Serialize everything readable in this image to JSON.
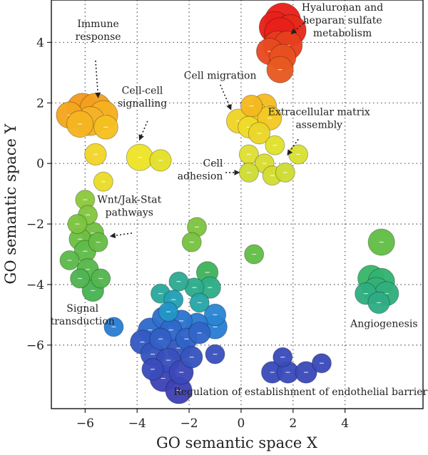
{
  "chart_data": {
    "type": "scatter",
    "xlabel": "GO semantic space X",
    "ylabel": "GO semantic space Y",
    "xlim": [
      -7.3,
      7.0
    ],
    "ylim": [
      -8.1,
      5.4
    ],
    "xticks": [
      -6,
      -4,
      -2,
      0,
      2,
      4
    ],
    "xtick_labels": [
      "−6",
      "−4",
      "−2",
      "0",
      "2",
      "4"
    ],
    "yticks": [
      -6,
      -4,
      -2,
      0,
      2,
      4
    ],
    "ytick_labels": [
      "−6",
      "−4",
      "−2",
      "0",
      "2",
      "4"
    ],
    "grid": "dotted",
    "points": [
      {
        "x": 1.6,
        "y": 4.7,
        "size": 1.2,
        "color": "#e8201a"
      },
      {
        "x": 1.3,
        "y": 4.5,
        "size": 1.0,
        "color": "#e8201a"
      },
      {
        "x": 1.9,
        "y": 4.4,
        "size": 1.0,
        "color": "#e62a1a"
      },
      {
        "x": 1.5,
        "y": 4.3,
        "size": 1.0,
        "color": "#e8201a"
      },
      {
        "x": 1.4,
        "y": 3.9,
        "size": 0.9,
        "color": "#e63a1e"
      },
      {
        "x": 1.8,
        "y": 3.9,
        "size": 0.9,
        "color": "#e6401e"
      },
      {
        "x": 1.1,
        "y": 3.7,
        "size": 0.8,
        "color": "#e84a20"
      },
      {
        "x": 1.6,
        "y": 3.5,
        "size": 0.8,
        "color": "#e8501f"
      },
      {
        "x": 1.5,
        "y": 3.1,
        "size": 0.8,
        "color": "#e65a20"
      },
      {
        "x": -6.1,
        "y": 1.8,
        "size": 1.0,
        "color": "#f39a1c"
      },
      {
        "x": -5.6,
        "y": 1.8,
        "size": 1.0,
        "color": "#f5a01c"
      },
      {
        "x": -6.6,
        "y": 1.6,
        "size": 0.8,
        "color": "#f5a51e"
      },
      {
        "x": -5.3,
        "y": 1.6,
        "size": 0.9,
        "color": "#f5b020"
      },
      {
        "x": -5.8,
        "y": 1.4,
        "size": 0.9,
        "color": "#f5b22a"
      },
      {
        "x": -6.2,
        "y": 1.3,
        "size": 0.8,
        "color": "#f5b420"
      },
      {
        "x": -5.2,
        "y": 1.2,
        "size": 0.7,
        "color": "#f5c020"
      },
      {
        "x": -5.6,
        "y": 0.3,
        "size": 0.6,
        "color": "#f1d526"
      },
      {
        "x": -5.3,
        "y": -0.6,
        "size": 0.5,
        "color": "#e8dc2a"
      },
      {
        "x": -3.9,
        "y": 0.2,
        "size": 0.8,
        "color": "#eee326"
      },
      {
        "x": -3.1,
        "y": 0.1,
        "size": 0.6,
        "color": "#e3e028"
      },
      {
        "x": 0.4,
        "y": 1.9,
        "size": 0.6,
        "color": "#f5b820"
      },
      {
        "x": 0.9,
        "y": 1.9,
        "size": 0.7,
        "color": "#f5bb22"
      },
      {
        "x": 0.6,
        "y": 1.6,
        "size": 0.7,
        "color": "#f5c622"
      },
      {
        "x": 1.1,
        "y": 1.5,
        "size": 0.7,
        "color": "#f4c924"
      },
      {
        "x": -0.1,
        "y": 1.4,
        "size": 0.7,
        "color": "#f0d326"
      },
      {
        "x": 0.3,
        "y": 1.2,
        "size": 0.6,
        "color": "#eedb28"
      },
      {
        "x": 0.7,
        "y": 1.0,
        "size": 0.6,
        "color": "#ebd528"
      },
      {
        "x": 1.3,
        "y": 0.6,
        "size": 0.5,
        "color": "#dfe22a"
      },
      {
        "x": 2.2,
        "y": 0.3,
        "size": 0.5,
        "color": "#d8e030"
      },
      {
        "x": 0.3,
        "y": 0.3,
        "size": 0.5,
        "color": "#dfe030"
      },
      {
        "x": 0.9,
        "y": 0.0,
        "size": 0.5,
        "color": "#d8dc30"
      },
      {
        "x": 1.2,
        "y": -0.4,
        "size": 0.5,
        "color": "#d3dd30"
      },
      {
        "x": 1.7,
        "y": -0.3,
        "size": 0.5,
        "color": "#cfdc32"
      },
      {
        "x": 0.3,
        "y": -0.3,
        "size": 0.5,
        "color": "#cfdc32"
      },
      {
        "x": -6.0,
        "y": -1.2,
        "size": 0.5,
        "color": "#8dc93e"
      },
      {
        "x": -5.9,
        "y": -1.7,
        "size": 0.5,
        "color": "#82c63e"
      },
      {
        "x": -6.3,
        "y": -2.0,
        "size": 0.5,
        "color": "#7cc440"
      },
      {
        "x": -5.7,
        "y": -2.3,
        "size": 0.6,
        "color": "#72c142"
      },
      {
        "x": -6.2,
        "y": -2.5,
        "size": 0.6,
        "color": "#6cbf44"
      },
      {
        "x": -5.5,
        "y": -2.6,
        "size": 0.5,
        "color": "#66bd46"
      },
      {
        "x": -6.0,
        "y": -2.9,
        "size": 0.6,
        "color": "#60bb48"
      },
      {
        "x": -6.6,
        "y": -3.2,
        "size": 0.5,
        "color": "#5cba4a"
      },
      {
        "x": -5.9,
        "y": -3.5,
        "size": 0.6,
        "color": "#57b84c"
      },
      {
        "x": -5.4,
        "y": -3.8,
        "size": 0.5,
        "color": "#52b64e"
      },
      {
        "x": -6.2,
        "y": -3.8,
        "size": 0.5,
        "color": "#4eb450"
      },
      {
        "x": -5.7,
        "y": -4.2,
        "size": 0.6,
        "color": "#48b352"
      },
      {
        "x": -1.7,
        "y": -2.1,
        "size": 0.5,
        "color": "#7dc540"
      },
      {
        "x": -1.9,
        "y": -2.6,
        "size": 0.5,
        "color": "#78c342"
      },
      {
        "x": 0.5,
        "y": -3.0,
        "size": 0.5,
        "color": "#62bd46"
      },
      {
        "x": 5.4,
        "y": -2.6,
        "size": 0.8,
        "color": "#63be46"
      },
      {
        "x": 5.0,
        "y": -3.8,
        "size": 0.8,
        "color": "#38b56a"
      },
      {
        "x": 5.4,
        "y": -3.9,
        "size": 0.8,
        "color": "#34b370"
      },
      {
        "x": 5.2,
        "y": -4.2,
        "size": 0.8,
        "color": "#33b176"
      },
      {
        "x": 4.8,
        "y": -4.3,
        "size": 0.6,
        "color": "#30ae80"
      },
      {
        "x": 5.6,
        "y": -4.3,
        "size": 0.7,
        "color": "#31af7c"
      },
      {
        "x": 5.3,
        "y": -4.6,
        "size": 0.6,
        "color": "#2fac84"
      },
      {
        "x": -1.3,
        "y": -3.6,
        "size": 0.6,
        "color": "#40b35c"
      },
      {
        "x": -1.2,
        "y": -4.1,
        "size": 0.6,
        "color": "#2fae86"
      },
      {
        "x": -1.8,
        "y": -4.1,
        "size": 0.5,
        "color": "#2eac8c"
      },
      {
        "x": -2.4,
        "y": -3.9,
        "size": 0.5,
        "color": "#2eaa92"
      },
      {
        "x": -3.1,
        "y": -4.3,
        "size": 0.5,
        "color": "#2ba89c"
      },
      {
        "x": -1.6,
        "y": -4.6,
        "size": 0.5,
        "color": "#27a5a5"
      },
      {
        "x": -2.6,
        "y": -4.5,
        "size": 0.5,
        "color": "#23a0b5"
      },
      {
        "x": -2.8,
        "y": -4.9,
        "size": 0.5,
        "color": "#2195c5"
      },
      {
        "x": -1.0,
        "y": -5.0,
        "size": 0.6,
        "color": "#2a86d2"
      },
      {
        "x": -1.0,
        "y": -5.4,
        "size": 0.7,
        "color": "#2a7ed4"
      },
      {
        "x": -1.7,
        "y": -5.3,
        "size": 0.6,
        "color": "#2b7ad2"
      },
      {
        "x": -2.3,
        "y": -5.2,
        "size": 0.6,
        "color": "#2c75cf"
      },
      {
        "x": -3.0,
        "y": -5.1,
        "size": 0.6,
        "color": "#2d6fcd"
      },
      {
        "x": -3.5,
        "y": -5.5,
        "size": 0.7,
        "color": "#2f6acb"
      },
      {
        "x": -2.7,
        "y": -5.5,
        "size": 0.6,
        "color": "#2f68ca"
      },
      {
        "x": -2.1,
        "y": -5.8,
        "size": 0.6,
        "color": "#3063c8"
      },
      {
        "x": -1.6,
        "y": -5.6,
        "size": 0.6,
        "color": "#3165c8"
      },
      {
        "x": -3.1,
        "y": -5.8,
        "size": 0.6,
        "color": "#325fc6"
      },
      {
        "x": -3.8,
        "y": -5.9,
        "size": 0.7,
        "color": "#345ac4"
      },
      {
        "x": -2.4,
        "y": -6.1,
        "size": 0.7,
        "color": "#3558c2"
      },
      {
        "x": -3.4,
        "y": -6.3,
        "size": 0.7,
        "color": "#3654c0"
      },
      {
        "x": -1.9,
        "y": -6.4,
        "size": 0.6,
        "color": "#3754be"
      },
      {
        "x": -2.8,
        "y": -6.5,
        "size": 0.7,
        "color": "#3850bd"
      },
      {
        "x": -1.0,
        "y": -6.3,
        "size": 0.5,
        "color": "#3a50bc"
      },
      {
        "x": -3.4,
        "y": -6.8,
        "size": 0.6,
        "color": "#3a4cbb"
      },
      {
        "x": -2.3,
        "y": -6.9,
        "size": 0.7,
        "color": "#3b48b9"
      },
      {
        "x": -3.0,
        "y": -7.1,
        "size": 0.8,
        "color": "#3d44b6"
      },
      {
        "x": -2.4,
        "y": -7.5,
        "size": 0.8,
        "color": "#3e42b4"
      },
      {
        "x": -4.9,
        "y": -5.4,
        "size": 0.5,
        "color": "#2a7ed4"
      },
      {
        "x": 1.6,
        "y": -6.4,
        "size": 0.5,
        "color": "#3a4cbb"
      },
      {
        "x": 1.2,
        "y": -6.9,
        "size": 0.6,
        "color": "#3a4cbb"
      },
      {
        "x": 1.8,
        "y": -6.9,
        "size": 0.6,
        "color": "#3a4cbb"
      },
      {
        "x": 2.5,
        "y": -6.9,
        "size": 0.6,
        "color": "#3b4ab9"
      },
      {
        "x": 3.1,
        "y": -6.6,
        "size": 0.5,
        "color": "#3b4ab9"
      }
    ],
    "annotations": [
      {
        "lines": [
          "Hyaluronan and",
          "heparan sulfate",
          "metabolism"
        ],
        "anchor": "middle",
        "tx": 3.9,
        "ty": 5.05,
        "arrow": [
          [
            2.5,
            4.7
          ],
          [
            1.95,
            4.3
          ]
        ]
      },
      {
        "lines": [
          "Immune",
          "response"
        ],
        "anchor": "middle",
        "tx": -5.5,
        "ty": 4.5,
        "arrow": [
          [
            -5.6,
            3.4
          ],
          [
            -5.5,
            2.2
          ]
        ]
      },
      {
        "lines": [
          "Cell migration"
        ],
        "anchor": "start",
        "tx": -2.2,
        "ty": 2.8,
        "arrow": [
          [
            -0.8,
            2.6
          ],
          [
            -0.4,
            1.8
          ]
        ]
      },
      {
        "lines": [
          "Cell-cell",
          "signalling"
        ],
        "anchor": "middle",
        "tx": -3.8,
        "ty": 2.3,
        "arrow": [
          [
            -3.6,
            1.4
          ],
          [
            -3.9,
            0.8
          ]
        ]
      },
      {
        "lines": [
          "Extracellular matrix",
          "assembly"
        ],
        "anchor": "middle",
        "tx": 3.0,
        "ty": 1.6,
        "arrow": [
          [
            2.2,
            0.8
          ],
          [
            1.8,
            0.3
          ]
        ]
      },
      {
        "lines": [
          "Cell",
          "adhesion"
        ],
        "anchor": "end",
        "tx": -0.7,
        "ty": -0.1,
        "arrow": [
          [
            -0.6,
            -0.3
          ],
          [
            -0.1,
            -0.3
          ]
        ]
      },
      {
        "lines": [
          "Wnt/Jak-Stat",
          "pathways"
        ],
        "anchor": "middle",
        "tx": -4.3,
        "ty": -1.3,
        "arrow": [
          [
            -4.2,
            -2.3
          ],
          [
            -5.0,
            -2.4
          ]
        ]
      },
      {
        "lines": [
          "Signal",
          "transduction"
        ],
        "anchor": "middle",
        "tx": -6.1,
        "ty": -4.9,
        "arrow": null
      },
      {
        "lines": [
          "Angiogenesis"
        ],
        "anchor": "middle",
        "tx": 5.5,
        "ty": -5.4,
        "arrow": null
      },
      {
        "lines": [
          "Regulation of establishment of endothelial barrier"
        ],
        "anchor": "start",
        "tx": -2.6,
        "ty": -7.65,
        "arrow": null
      }
    ]
  }
}
